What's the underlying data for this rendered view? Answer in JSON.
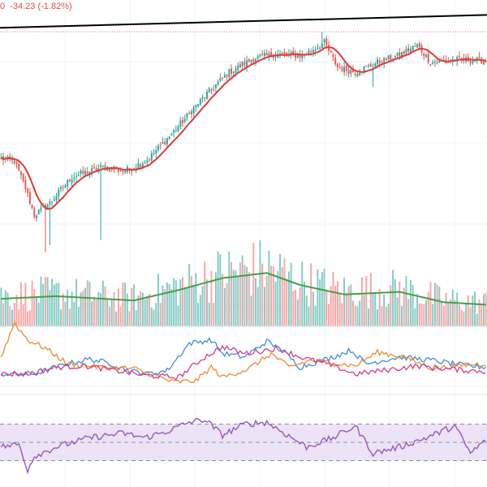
{
  "header": {
    "price_change_text": "0  -34.23 (-1.82%)",
    "color": "#e04b4b"
  },
  "colors": {
    "background": "#ffffff",
    "up": "#26a69a",
    "down": "#ef5350",
    "volume_up": "#80cbc4",
    "volume_down": "#f7a4a4",
    "moving_average": "#e53935",
    "volume_average": "#43a047",
    "trendline": "#000000",
    "reference_line": "#e57373",
    "osc_blue": "#3a8ee6",
    "osc_orange": "#f08c2e",
    "osc_pink": "#d63a8a",
    "rsi": "#9c5fc9",
    "rsi_band": "#ede3f7",
    "grid": "#f0f3fa"
  },
  "chart_data": [
    {
      "type": "candlestick",
      "panel": "price",
      "grid": true,
      "close_series": [
        {
          "start": 0,
          "v": 1965
        },
        {
          "start": 6,
          "v": 1960
        },
        {
          "start": 11,
          "v": 1905
        },
        {
          "start": 15,
          "v": 1850
        },
        {
          "start": 22,
          "v": 1875
        },
        {
          "start": 32,
          "v": 1928
        },
        {
          "start": 46,
          "v": 1948
        },
        {
          "start": 56,
          "v": 1940
        },
        {
          "start": 66,
          "v": 1962
        },
        {
          "start": 78,
          "v": 2020
        },
        {
          "start": 90,
          "v": 2082
        },
        {
          "start": 102,
          "v": 2137
        },
        {
          "start": 114,
          "v": 2168
        },
        {
          "start": 124,
          "v": 2176
        },
        {
          "start": 136,
          "v": 2174
        },
        {
          "start": 146,
          "v": 2200
        },
        {
          "start": 152,
          "v": 2150
        },
        {
          "start": 160,
          "v": 2140
        },
        {
          "start": 170,
          "v": 2160
        },
        {
          "start": 180,
          "v": 2175
        },
        {
          "start": 188,
          "v": 2195
        },
        {
          "start": 194,
          "v": 2160
        },
        {
          "start": 204,
          "v": 2165
        },
        {
          "start": 220,
          "v": 2164
        }
      ],
      "n_bars": 220,
      "ylim": [
        1760,
        2260
      ],
      "moving_average_period": 9,
      "trendline": [
        [
          0,
          2230
        ],
        [
          219,
          2256
        ]
      ],
      "reference_level": 2222
    },
    {
      "type": "bar",
      "panel": "volume",
      "ylim": [
        0,
        100
      ],
      "volume_average": [
        {
          "start": 0,
          "v": 32
        },
        {
          "start": 25,
          "v": 35
        },
        {
          "start": 60,
          "v": 30
        },
        {
          "start": 80,
          "v": 42
        },
        {
          "start": 100,
          "v": 56
        },
        {
          "start": 120,
          "v": 62
        },
        {
          "start": 135,
          "v": 48
        },
        {
          "start": 155,
          "v": 37
        },
        {
          "start": 180,
          "v": 40
        },
        {
          "start": 200,
          "v": 28
        },
        {
          "start": 220,
          "v": 25
        }
      ]
    },
    {
      "type": "line",
      "panel": "oscillator",
      "ylim": [
        0,
        100
      ],
      "series": [
        {
          "color_key": "osc_blue",
          "points": [
            {
              "start": 0,
              "v": 30
            },
            {
              "start": 15,
              "v": 30
            },
            {
              "start": 30,
              "v": 45
            },
            {
              "start": 40,
              "v": 52
            },
            {
              "start": 50,
              "v": 45
            },
            {
              "start": 58,
              "v": 35
            },
            {
              "start": 66,
              "v": 30
            },
            {
              "start": 75,
              "v": 35
            },
            {
              "start": 85,
              "v": 75
            },
            {
              "start": 95,
              "v": 80
            },
            {
              "start": 100,
              "v": 60
            },
            {
              "start": 110,
              "v": 55
            },
            {
              "start": 120,
              "v": 78
            },
            {
              "start": 128,
              "v": 62
            },
            {
              "start": 135,
              "v": 40
            },
            {
              "start": 150,
              "v": 55
            },
            {
              "start": 158,
              "v": 65
            },
            {
              "start": 165,
              "v": 45
            },
            {
              "start": 180,
              "v": 55
            },
            {
              "start": 195,
              "v": 50
            },
            {
              "start": 210,
              "v": 42
            },
            {
              "start": 220,
              "v": 40
            }
          ]
        },
        {
          "color_key": "osc_orange",
          "points": [
            {
              "start": 0,
              "v": 55
            },
            {
              "start": 6,
              "v": 105
            },
            {
              "start": 12,
              "v": 80
            },
            {
              "start": 20,
              "v": 68
            },
            {
              "start": 30,
              "v": 45
            },
            {
              "start": 45,
              "v": 40
            },
            {
              "start": 60,
              "v": 38
            },
            {
              "start": 78,
              "v": 18
            },
            {
              "start": 88,
              "v": 20
            },
            {
              "start": 95,
              "v": 40
            },
            {
              "start": 100,
              "v": 25
            },
            {
              "start": 112,
              "v": 38
            },
            {
              "start": 122,
              "v": 60
            },
            {
              "start": 130,
              "v": 40
            },
            {
              "start": 140,
              "v": 50
            },
            {
              "start": 160,
              "v": 42
            },
            {
              "start": 170,
              "v": 62
            },
            {
              "start": 182,
              "v": 55
            },
            {
              "start": 195,
              "v": 38
            },
            {
              "start": 212,
              "v": 44
            },
            {
              "start": 220,
              "v": 45
            }
          ]
        },
        {
          "color_key": "osc_pink",
          "points": [
            {
              "start": 0,
              "v": 30
            },
            {
              "start": 12,
              "v": 30
            },
            {
              "start": 25,
              "v": 40
            },
            {
              "start": 38,
              "v": 42
            },
            {
              "start": 52,
              "v": 35
            },
            {
              "start": 65,
              "v": 28
            },
            {
              "start": 80,
              "v": 25
            },
            {
              "start": 92,
              "v": 55
            },
            {
              "start": 100,
              "v": 70
            },
            {
              "start": 110,
              "v": 60
            },
            {
              "start": 125,
              "v": 68
            },
            {
              "start": 135,
              "v": 55
            },
            {
              "start": 150,
              "v": 42
            },
            {
              "start": 160,
              "v": 30
            },
            {
              "start": 172,
              "v": 35
            },
            {
              "start": 188,
              "v": 42
            },
            {
              "start": 200,
              "v": 38
            },
            {
              "start": 212,
              "v": 35
            },
            {
              "start": 220,
              "v": 34
            }
          ]
        }
      ]
    },
    {
      "type": "line",
      "panel": "rsi",
      "ylim": [
        10,
        90
      ],
      "band": [
        30,
        70
      ],
      "midline": 50,
      "color_key": "rsi",
      "points": [
        {
          "start": 0,
          "v": 45
        },
        {
          "start": 8,
          "v": 48
        },
        {
          "start": 12,
          "v": 20
        },
        {
          "start": 15,
          "v": 35
        },
        {
          "start": 25,
          "v": 45
        },
        {
          "start": 40,
          "v": 55
        },
        {
          "start": 55,
          "v": 60
        },
        {
          "start": 65,
          "v": 55
        },
        {
          "start": 75,
          "v": 62
        },
        {
          "start": 85,
          "v": 72
        },
        {
          "start": 92,
          "v": 75
        },
        {
          "start": 100,
          "v": 58
        },
        {
          "start": 110,
          "v": 70
        },
        {
          "start": 120,
          "v": 72
        },
        {
          "start": 128,
          "v": 60
        },
        {
          "start": 138,
          "v": 45
        },
        {
          "start": 150,
          "v": 55
        },
        {
          "start": 160,
          "v": 68
        },
        {
          "start": 168,
          "v": 38
        },
        {
          "start": 180,
          "v": 45
        },
        {
          "start": 192,
          "v": 55
        },
        {
          "start": 205,
          "v": 68
        },
        {
          "start": 212,
          "v": 38
        },
        {
          "start": 220,
          "v": 55
        }
      ]
    }
  ]
}
